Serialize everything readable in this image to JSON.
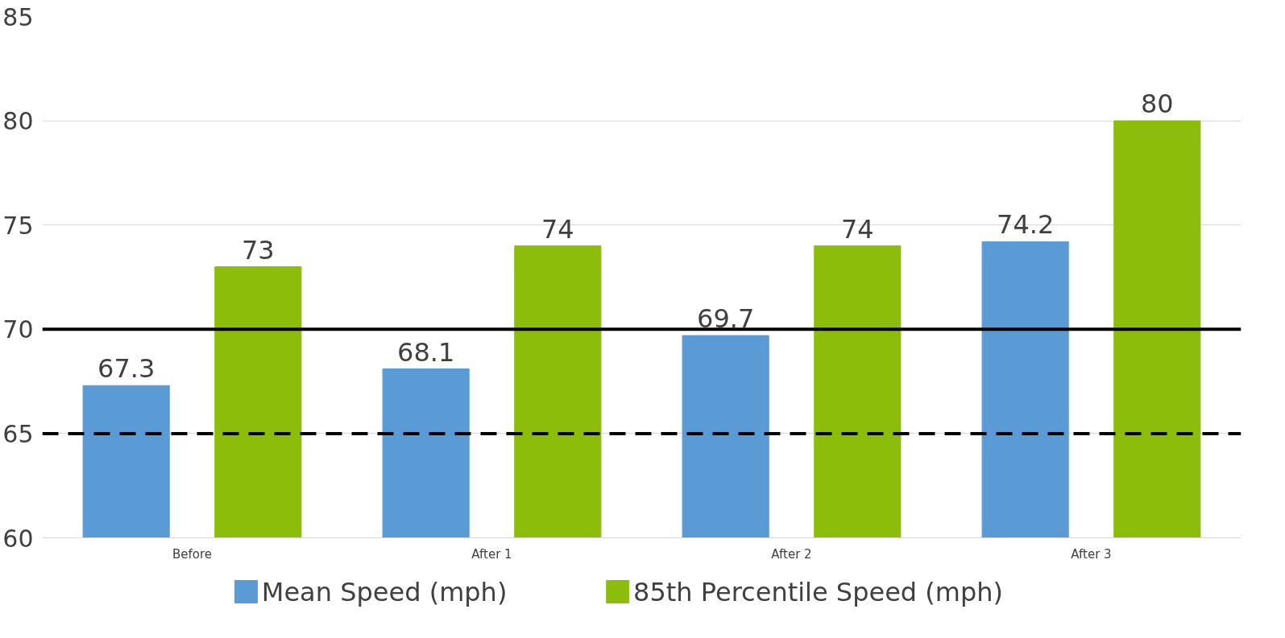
{
  "chart_data": {
    "type": "bar",
    "categories": [
      "Before",
      "After 1",
      "After 2",
      "After 3"
    ],
    "series": [
      {
        "name": "Mean Speed (mph)",
        "color": "#5b9bd5",
        "values": [
          67.3,
          68.1,
          69.7,
          74.2
        ]
      },
      {
        "name": "85th Percentile Speed (mph)",
        "color": "#8cbd0a",
        "values": [
          73,
          74,
          74,
          80
        ]
      }
    ],
    "ylim": [
      60,
      85
    ],
    "yticks": [
      60,
      65,
      70,
      75,
      80,
      85
    ],
    "grid": "y",
    "legend": "bottom",
    "data_labels": true,
    "ref_lines": [
      {
        "axis": "y",
        "value": 70,
        "color": "#000000",
        "line_style": "solid"
      },
      {
        "axis": "y",
        "value": 65,
        "color": "#000000",
        "line_style": "dashed"
      }
    ]
  }
}
